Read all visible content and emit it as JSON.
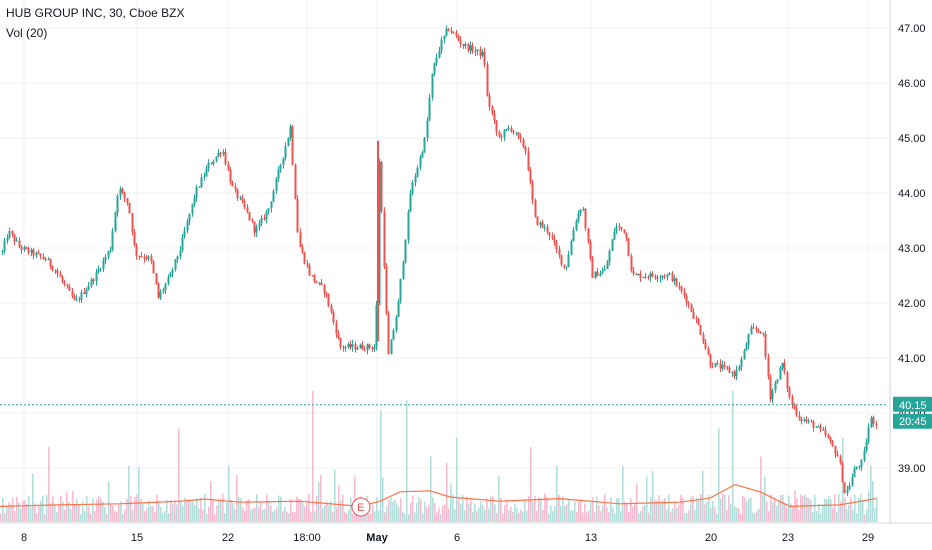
{
  "header": {
    "title": "HUB GROUP INC, 30, Cboe BZX",
    "indicator": "Vol (20)"
  },
  "colors": {
    "up": "#26a69a",
    "down": "#ef5350",
    "vol_up": "#b2dfdb",
    "vol_down": "#f8bbd0",
    "vol_ma": "#ff7043",
    "price_line": "#26a69a",
    "grid": "#eef0f3",
    "axis": "#d1d4dc",
    "text": "#131722"
  },
  "chart_data": {
    "type": "candlestick",
    "symbol": "HUB GROUP INC",
    "interval": "30",
    "exchange": "Cboe BZX",
    "price_axis": {
      "ticks": [
        39.0,
        40.0,
        41.0,
        42.0,
        43.0,
        44.0,
        45.0,
        46.0,
        47.0
      ],
      "range": [
        37.9,
        47.5
      ]
    },
    "last_price": 40.15,
    "countdown": "20:45",
    "earnings_marker": "E",
    "x_axis_labels": [
      "8",
      "15",
      "22",
      "18:00",
      "May",
      "6",
      "13",
      "20",
      "23",
      "29"
    ],
    "price_path": [
      [
        0,
        42.8
      ],
      [
        8,
        43.3
      ],
      [
        20,
        43.0
      ],
      [
        45,
        42.8
      ],
      [
        55,
        42.6
      ],
      [
        75,
        42.0
      ],
      [
        95,
        42.5
      ],
      [
        110,
        43.0
      ],
      [
        118,
        44.1
      ],
      [
        128,
        43.8
      ],
      [
        135,
        42.9
      ],
      [
        150,
        42.8
      ],
      [
        158,
        42.1
      ],
      [
        170,
        42.5
      ],
      [
        180,
        43.0
      ],
      [
        195,
        44.0
      ],
      [
        208,
        44.5
      ],
      [
        222,
        44.8
      ],
      [
        232,
        44.1
      ],
      [
        245,
        43.7
      ],
      [
        255,
        43.3
      ],
      [
        268,
        43.7
      ],
      [
        280,
        44.5
      ],
      [
        290,
        45.2
      ],
      [
        298,
        43.1
      ],
      [
        310,
        42.5
      ],
      [
        325,
        42.2
      ],
      [
        340,
        41.2
      ],
      [
        360,
        41.2
      ],
      [
        376,
        41.2
      ],
      [
        378,
        44.9
      ],
      [
        388,
        41.0
      ],
      [
        398,
        42.0
      ],
      [
        410,
        44.0
      ],
      [
        425,
        45.0
      ],
      [
        432,
        46.2
      ],
      [
        440,
        46.7
      ],
      [
        448,
        47.0
      ],
      [
        462,
        46.7
      ],
      [
        484,
        46.5
      ],
      [
        486,
        45.8
      ],
      [
        498,
        45.0
      ],
      [
        510,
        45.2
      ],
      [
        525,
        44.8
      ],
      [
        535,
        43.5
      ],
      [
        548,
        43.3
      ],
      [
        565,
        42.6
      ],
      [
        575,
        43.5
      ],
      [
        582,
        43.8
      ],
      [
        592,
        42.5
      ],
      [
        605,
        42.6
      ],
      [
        615,
        43.4
      ],
      [
        625,
        43.3
      ],
      [
        632,
        42.5
      ],
      [
        650,
        42.5
      ],
      [
        670,
        42.5
      ],
      [
        685,
        42.1
      ],
      [
        700,
        41.5
      ],
      [
        710,
        40.9
      ],
      [
        725,
        40.8
      ],
      [
        735,
        40.7
      ],
      [
        742,
        41.0
      ],
      [
        750,
        41.5
      ],
      [
        762,
        41.5
      ],
      [
        770,
        40.3
      ],
      [
        782,
        40.9
      ],
      [
        790,
        40.2
      ],
      [
        800,
        39.9
      ],
      [
        812,
        39.8
      ],
      [
        825,
        39.6
      ],
      [
        838,
        39.2
      ],
      [
        845,
        38.5
      ],
      [
        855,
        39.0
      ],
      [
        862,
        39.1
      ],
      [
        870,
        39.9
      ],
      [
        876,
        39.8
      ]
    ],
    "volume_spikes": [
      [
        48,
        0.8
      ],
      [
        128,
        0.6
      ],
      [
        178,
        1.0
      ],
      [
        235,
        0.5
      ],
      [
        312,
        1.4
      ],
      [
        380,
        1.2
      ],
      [
        405,
        1.3
      ],
      [
        430,
        0.7
      ],
      [
        455,
        0.9
      ],
      [
        530,
        0.8
      ],
      [
        555,
        0.6
      ],
      [
        622,
        0.6
      ],
      [
        718,
        1.0
      ],
      [
        732,
        1.4
      ],
      [
        760,
        0.7
      ],
      [
        842,
        0.9
      ]
    ],
    "volume_ma_path": [
      [
        0,
        0.3
      ],
      [
        60,
        0.33
      ],
      [
        120,
        0.35
      ],
      [
        180,
        0.4
      ],
      [
        205,
        0.44
      ],
      [
        240,
        0.38
      ],
      [
        300,
        0.4
      ],
      [
        360,
        0.3
      ],
      [
        380,
        0.4
      ],
      [
        400,
        0.58
      ],
      [
        430,
        0.6
      ],
      [
        450,
        0.48
      ],
      [
        500,
        0.4
      ],
      [
        560,
        0.45
      ],
      [
        620,
        0.35
      ],
      [
        680,
        0.38
      ],
      [
        710,
        0.46
      ],
      [
        735,
        0.72
      ],
      [
        760,
        0.58
      ],
      [
        790,
        0.3
      ],
      [
        840,
        0.33
      ],
      [
        876,
        0.45
      ]
    ]
  }
}
